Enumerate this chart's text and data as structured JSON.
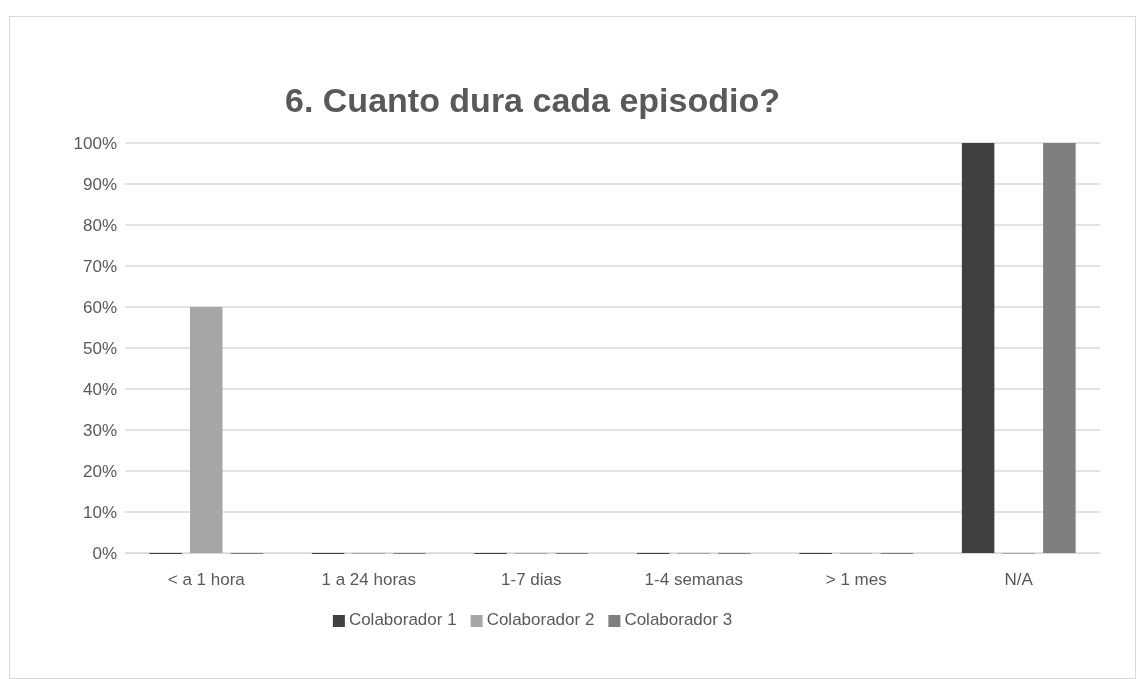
{
  "chart_data": {
    "type": "bar",
    "title": "6. Cuanto dura cada episodio?",
    "categories": [
      "< a 1 hora",
      "1 a 24 horas",
      "1-7 dias",
      "1-4 semanas",
      "> 1 mes",
      "N/A"
    ],
    "series": [
      {
        "name": "Colaborador 1",
        "color": "#404040",
        "values": [
          0,
          0,
          0,
          0,
          0,
          100
        ]
      },
      {
        "name": "Colaborador 2",
        "color": "#a6a6a6",
        "values": [
          60,
          0,
          0,
          0,
          0,
          0
        ]
      },
      {
        "name": "Colaborador 3",
        "color": "#7f7f7f",
        "values": [
          0,
          0,
          0,
          0,
          0,
          100
        ]
      }
    ],
    "ylim": [
      0,
      100
    ],
    "yticks": [
      {
        "value": 0,
        "label": "0%"
      },
      {
        "value": 10,
        "label": "10%"
      },
      {
        "value": 20,
        "label": "20%"
      },
      {
        "value": 30,
        "label": "30%"
      },
      {
        "value": 40,
        "label": "40%"
      },
      {
        "value": 50,
        "label": "50%"
      },
      {
        "value": 60,
        "label": "60%"
      },
      {
        "value": 70,
        "label": "70%"
      },
      {
        "value": 80,
        "label": "80%"
      },
      {
        "value": 90,
        "label": "90%"
      },
      {
        "value": 100,
        "label": "100%"
      }
    ],
    "grid": "y",
    "legend": "bottom"
  }
}
